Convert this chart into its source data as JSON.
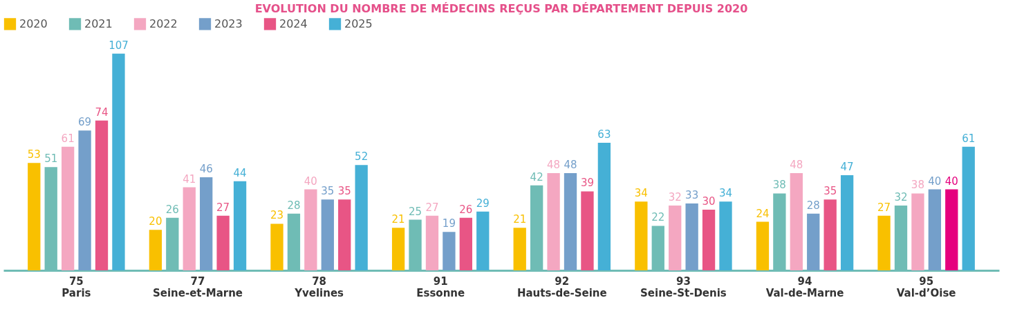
{
  "chart_data": {
    "type": "bar",
    "title": "EVOLUTION DU NOMBRE DE MÉDECINS REÇUS PAR DÉPARTEMENT DEPUIS 2020",
    "categories": [
      "75\nParis",
      "77\nSeine-et-Marne",
      "78\nYvelines",
      "91\nEssonne",
      "92\nHauts-de-Seine",
      "93\nSeine-St-Denis",
      "94\nVal-de-Marne",
      "95\nVal-d’Oise"
    ],
    "series": [
      {
        "name": "2020",
        "color": "#f9c000",
        "values": [
          53,
          20,
          23,
          21,
          21,
          34,
          24,
          27
        ]
      },
      {
        "name": "2021",
        "color": "#6fbcb5",
        "values": [
          51,
          26,
          28,
          25,
          42,
          22,
          38,
          32
        ]
      },
      {
        "name": "2022",
        "color": "#f4a7c1",
        "values": [
          61,
          41,
          40,
          27,
          48,
          32,
          48,
          38
        ]
      },
      {
        "name": "2023",
        "color": "#749fca",
        "values": [
          69,
          46,
          35,
          19,
          48,
          33,
          28,
          40
        ]
      },
      {
        "name": "2024",
        "color": "#e85585",
        "colors": [
          "#e85585",
          "#e85585",
          "#e85585",
          "#e85585",
          "#e85585",
          "#e85585",
          "#e85585",
          "#e5007e"
        ],
        "values": [
          74,
          27,
          35,
          26,
          39,
          30,
          35,
          40
        ]
      },
      {
        "name": "2025",
        "color": "#45b0d6",
        "values": [
          107,
          44,
          52,
          29,
          63,
          34,
          47,
          61
        ]
      }
    ],
    "data_labels": true,
    "legend": "top",
    "grid": false
  }
}
